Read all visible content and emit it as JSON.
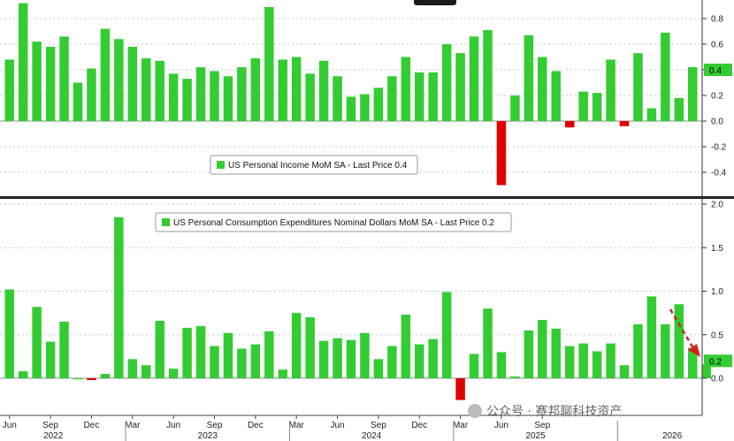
{
  "chart_data": [
    {
      "type": "bar",
      "legend": "US Personal Income MoM SA - Last Price 0.4",
      "last_price": "0.4",
      "ylim": [
        -0.5,
        0.95
      ],
      "yticks": [
        "0.8",
        "0.6",
        "0.4",
        "0.2",
        "0.0",
        "-0.2",
        "-0.4"
      ],
      "grid": true,
      "colors": {
        "positive": "#33cc33",
        "negative": "#e00000"
      },
      "values": [
        0.48,
        0.92,
        0.62,
        0.58,
        0.66,
        0.3,
        0.41,
        0.72,
        0.64,
        0.58,
        0.49,
        0.47,
        0.37,
        0.33,
        0.42,
        0.39,
        0.35,
        0.42,
        0.49,
        0.89,
        0.48,
        0.5,
        0.37,
        0.47,
        0.35,
        0.19,
        0.21,
        0.26,
        0.35,
        0.5,
        0.38,
        0.38,
        0.6,
        0.53,
        0.66,
        0.71,
        -0.5,
        0.2,
        0.67,
        0.5,
        0.39,
        -0.05,
        0.23,
        0.22,
        0.48,
        -0.04,
        0.53,
        0.1,
        0.69,
        0.18,
        0.42
      ]
    },
    {
      "type": "bar",
      "legend": "US Personal Consumption Expenditures Nominal Dollars MoM SA - Last Price 0.2",
      "last_price": "0.2",
      "ylim": [
        -0.25,
        2.05
      ],
      "yticks": [
        "2.0",
        "1.5",
        "1.0",
        "0.5",
        "0.0"
      ],
      "grid": true,
      "colors": {
        "positive": "#33cc33",
        "negative": "#e00000"
      },
      "values": [
        1.02,
        0.08,
        0.82,
        0.42,
        0.65,
        0.0,
        -0.02,
        0.05,
        1.85,
        0.22,
        0.15,
        0.66,
        0.11,
        0.58,
        0.6,
        0.37,
        0.52,
        0.34,
        0.39,
        0.54,
        0.1,
        0.75,
        0.7,
        0.43,
        0.46,
        0.44,
        0.52,
        0.22,
        0.37,
        0.73,
        0.39,
        0.45,
        0.99,
        -0.25,
        0.28,
        0.8,
        0.3,
        0.02,
        0.55,
        0.67,
        0.57,
        0.37,
        0.4,
        0.31,
        0.4,
        0.15,
        0.62,
        0.94,
        0.62,
        0.85,
        0.35,
        0.16
      ]
    }
  ],
  "x_axis": {
    "months": [
      "Jun",
      "Sep",
      "Dec",
      "Mar",
      "Jun",
      "Sep",
      "Dec",
      "Mar",
      "Jun",
      "Sep",
      "Dec",
      "Mar",
      "Jun",
      "Sep"
    ],
    "years": [
      "2022",
      "2023",
      "2024",
      "2025",
      "2026"
    ]
  },
  "watermark": "公众号 · 赛邦聊科技资产"
}
